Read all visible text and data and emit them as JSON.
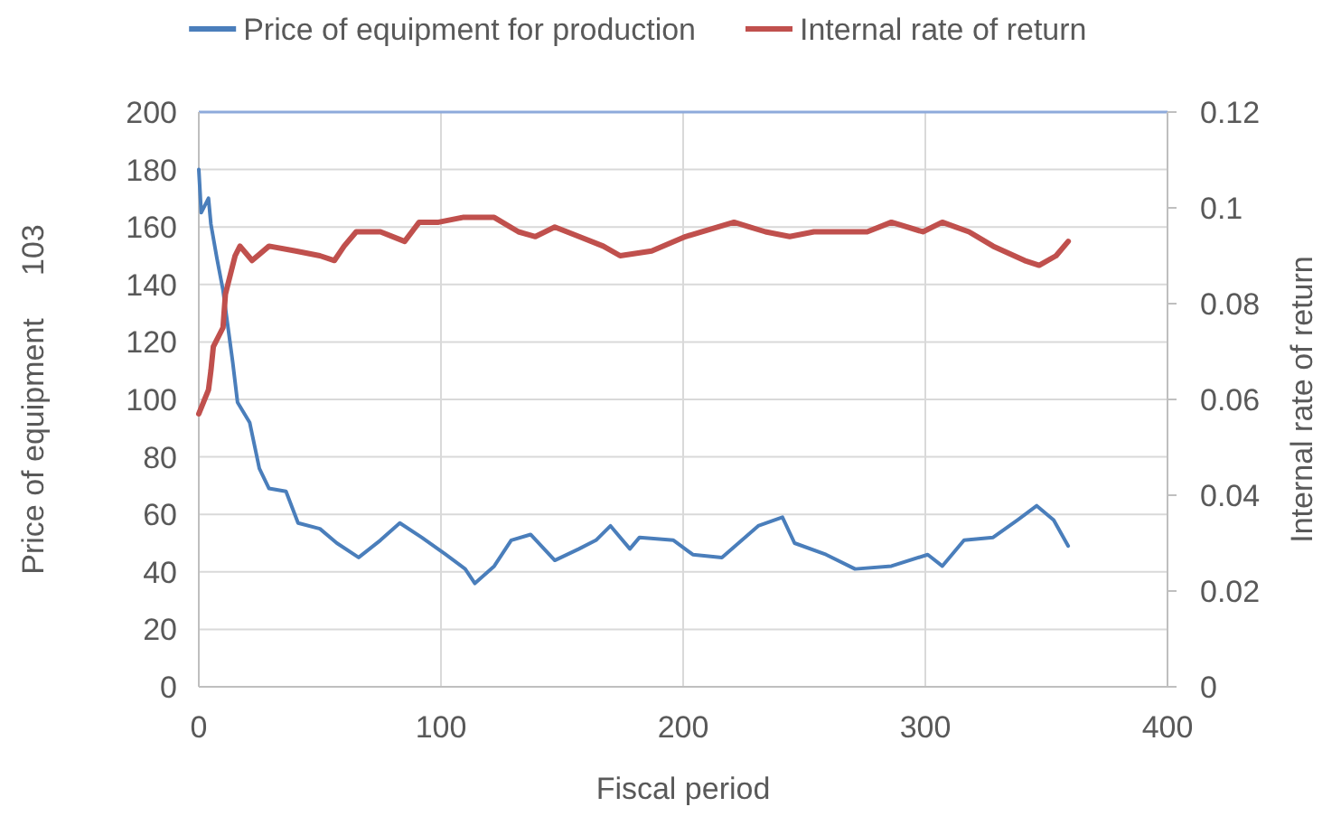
{
  "chart_data": {
    "type": "line",
    "xlabel": "Fiscal period",
    "ylabel": "Price of equipment     103",
    "y2label": "Internal rate of return",
    "xlim": [
      0,
      400
    ],
    "xticks": [
      0,
      100,
      200,
      300,
      400
    ],
    "ylim": [
      0,
      200
    ],
    "yticks": [
      0,
      20,
      40,
      60,
      80,
      100,
      120,
      140,
      160,
      180,
      200
    ],
    "y2lim": [
      0,
      0.12
    ],
    "y2ticks": [
      0,
      0.02,
      0.04,
      0.06,
      0.08,
      0.1,
      0.12
    ],
    "grid": true,
    "legend": "top",
    "marker": "none",
    "line_style": "solid",
    "series": [
      {
        "name": "Price of equipment for production",
        "color": "#4a7ebb",
        "x": [
          0,
          1,
          4,
          5,
          7.5,
          10,
          14,
          16,
          21,
          25,
          29,
          36,
          41,
          50,
          57,
          66,
          75,
          83,
          92,
          102,
          110,
          114,
          122,
          129,
          137,
          147,
          157,
          164,
          170,
          178,
          182,
          196,
          204,
          216,
          231,
          241,
          246,
          259,
          271,
          286,
          301,
          307,
          316,
          328,
          338,
          346,
          353,
          359
        ],
        "values": [
          180,
          165,
          170,
          161,
          149,
          138,
          113,
          99,
          92,
          76,
          69,
          68,
          57,
          55,
          50,
          45,
          51,
          57,
          52,
          46,
          41,
          36,
          42,
          51,
          53,
          44,
          48,
          51,
          56,
          48,
          52,
          51,
          46,
          45,
          56,
          59,
          50,
          46,
          41,
          42,
          46,
          42,
          51,
          52,
          58,
          63,
          58,
          49
        ]
      },
      {
        "name": "Internal rate of return",
        "color": "#c0504d",
        "axis": "y2",
        "x": [
          0,
          4,
          5,
          6,
          10,
          11,
          15,
          17,
          22,
          29,
          40,
          50,
          56,
          60,
          65,
          75,
          85,
          91,
          99,
          109,
          122,
          132,
          139,
          147,
          157,
          167,
          174,
          187,
          201,
          221,
          234,
          244,
          254,
          276,
          286,
          299,
          307,
          318,
          328,
          341,
          347,
          354,
          359
        ],
        "values": [
          0.057,
          0.062,
          0.066,
          0.071,
          0.075,
          0.082,
          0.09,
          0.092,
          0.089,
          0.092,
          0.091,
          0.09,
          0.089,
          0.092,
          0.095,
          0.095,
          0.093,
          0.097,
          0.097,
          0.098,
          0.098,
          0.095,
          0.094,
          0.096,
          0.094,
          0.092,
          0.09,
          0.091,
          0.094,
          0.097,
          0.095,
          0.094,
          0.095,
          0.095,
          0.097,
          0.095,
          0.097,
          0.095,
          0.092,
          0.089,
          0.088,
          0.09,
          0.093
        ]
      }
    ]
  }
}
